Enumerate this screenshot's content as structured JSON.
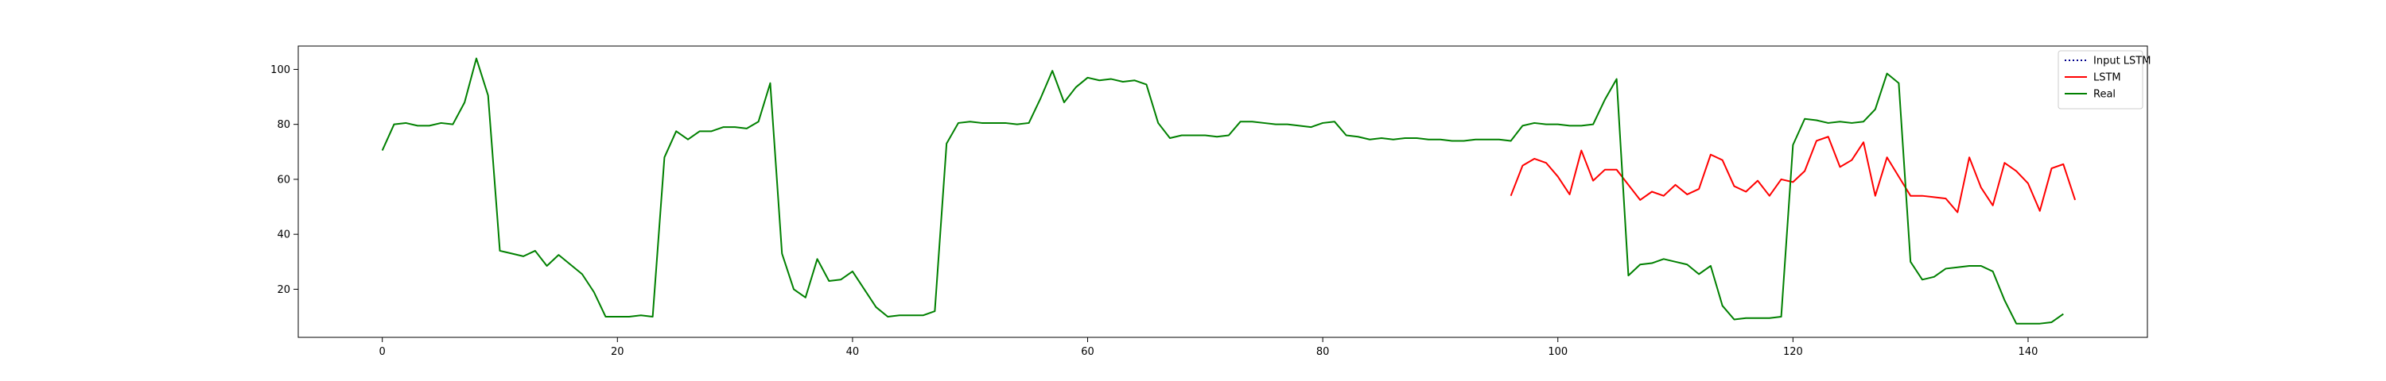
{
  "chart_data": {
    "type": "line",
    "xlim": [
      -7.15,
      150.15
    ],
    "ylim": [
      2.5,
      108.5
    ],
    "x_ticks": [
      0,
      20,
      40,
      60,
      80,
      100,
      120,
      140
    ],
    "y_ticks": [
      20,
      40,
      60,
      80,
      100
    ],
    "grid": false,
    "legend_position": "top-right",
    "series": [
      {
        "name": "Input LSTM",
        "color": "#00008b",
        "style": "dotted",
        "x_start": 0,
        "values": []
      },
      {
        "name": "LSTM",
        "color": "#ff0000",
        "style": "solid",
        "x_start": 96,
        "values": [
          54,
          65,
          67.5,
          66,
          61,
          54.5,
          70.5,
          59.5,
          63.5,
          63.5,
          58,
          52.5,
          55.5,
          54,
          58,
          54.5,
          56.5,
          69,
          67,
          57.5,
          55.5,
          59.5,
          54,
          60,
          59,
          63,
          74,
          75.5,
          64.5,
          67,
          73.5,
          54,
          68,
          61,
          54,
          54,
          53.5,
          53,
          48,
          68,
          57,
          50.5,
          66,
          63,
          58.5,
          48.5,
          64,
          65.5,
          52.5
        ]
      },
      {
        "name": "Real",
        "color": "#008000",
        "style": "solid",
        "x_start": 0,
        "values": [
          70.5,
          80,
          80.5,
          79.5,
          79.5,
          80.5,
          80,
          88,
          104,
          90.5,
          34,
          33,
          32,
          34,
          28.5,
          32.5,
          29,
          25.5,
          19,
          10,
          10,
          10,
          10.5,
          10,
          68,
          77.5,
          74.5,
          77.5,
          77.5,
          79,
          79,
          78.5,
          81,
          95,
          33,
          20,
          17,
          31,
          23,
          23.5,
          26.5,
          20,
          13.5,
          10,
          10.5,
          10.5,
          10.5,
          12,
          73,
          80.5,
          81,
          80.5,
          80.5,
          80.5,
          80,
          80.5,
          89.5,
          99.5,
          88,
          93.5,
          97,
          96,
          96.5,
          95.5,
          96,
          94.5,
          80.5,
          75,
          76,
          76,
          76,
          75.5,
          76,
          81,
          81,
          80.5,
          80,
          80,
          79.5,
          79,
          80.5,
          81,
          76,
          75.5,
          74.5,
          75,
          74.5,
          75,
          75,
          74.5,
          74.5,
          74,
          74,
          74.5,
          74.5,
          74.5,
          74,
          79.5,
          80.5,
          80,
          80,
          79.5,
          79.5,
          80,
          89,
          96.5,
          25,
          29,
          29.5,
          31,
          30,
          29,
          25.5,
          28.5,
          14,
          9,
          9.5,
          9.5,
          9.5,
          10,
          72.5,
          82,
          81.5,
          80.5,
          81,
          80.5,
          81,
          85.5,
          98.5,
          95,
          30,
          23.5,
          24.5,
          27.5,
          28,
          28.5,
          28.5,
          26.5,
          16,
          7.5,
          7.5,
          7.5,
          8,
          11
        ]
      }
    ]
  }
}
